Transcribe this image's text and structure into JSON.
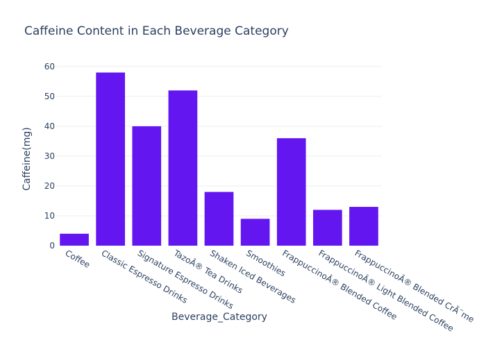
{
  "chart_data": {
    "type": "bar",
    "title": "Caffeine Content in Each Beverage Category",
    "xlabel": "Beverage_Category",
    "ylabel": "Caffeine(mg)",
    "categories": [
      "Coffee",
      "Classic Espresso Drinks",
      "Signature Espresso Drinks",
      "TazoÂ® Tea Drinks",
      "Shaken Iced Beverages",
      "Smoothies",
      "FrappuccinoÂ® Blended Coffee",
      "FrappuccinoÂ® Light Blended Coffee",
      "FrappuccinoÂ® Blended CrÃ¨me"
    ],
    "values": [
      4,
      58,
      40,
      52,
      18,
      9,
      36,
      12,
      13
    ],
    "ylim": [
      0,
      63
    ],
    "yticks": [
      0,
      10,
      20,
      30,
      40,
      50,
      60
    ],
    "grid": true,
    "legend": "none",
    "bar_color": "#6416F0"
  }
}
